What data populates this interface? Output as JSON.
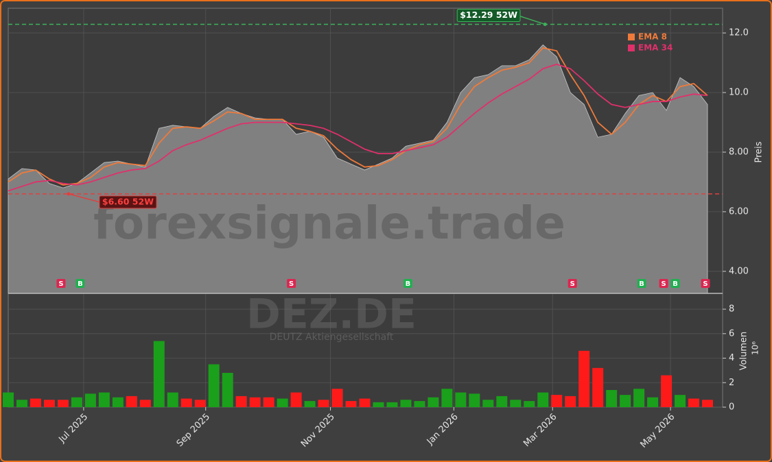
{
  "chart_data": {
    "type": "stock",
    "ticker": "DEZ.DE",
    "company": "DEUTZ Aktiengesellschaft",
    "watermark": "forexsignale.trade",
    "ylabel": "Preis",
    "y2label": "Volumen",
    "y2unit": "10⁶",
    "xlim": [
      0,
      52
    ],
    "xticks": [
      {
        "value": 5.5,
        "label": "Jul 2025"
      },
      {
        "value": 14.4,
        "label": "Sep 2025"
      },
      {
        "value": 23.5,
        "label": "Nov 2025"
      },
      {
        "value": 32.5,
        "label": "Jan 2026"
      },
      {
        "value": 39.7,
        "label": "Mar 2026"
      },
      {
        "value": 48.3,
        "label": "May 2026"
      }
    ],
    "ylim": [
      3.26,
      12.83
    ],
    "yticks": [
      {
        "value": 4,
        "label": "4.00"
      },
      {
        "value": 6,
        "label": "6.00"
      },
      {
        "value": 8,
        "label": "8.00"
      },
      {
        "value": 10,
        "label": "10.0"
      },
      {
        "value": 12,
        "label": "12.0"
      }
    ],
    "y2lim": [
      0,
      9.29
    ],
    "y2ticks": [
      0,
      2,
      4,
      6,
      8
    ],
    "grid": true,
    "x": [
      0,
      1,
      2,
      3,
      4,
      5,
      6,
      7,
      8,
      9,
      10,
      11,
      12,
      13,
      14,
      15,
      16,
      17,
      18,
      19,
      20,
      21,
      22,
      23,
      24,
      25,
      26,
      27,
      28,
      29,
      30,
      31,
      32,
      33,
      34,
      35,
      36,
      37,
      38,
      39,
      40,
      41,
      42,
      43,
      44,
      45,
      46,
      47,
      48,
      49,
      50,
      51
    ],
    "series": [
      {
        "name": "Close",
        "color": "#808080",
        "values": [
          7.1,
          7.45,
          7.4,
          6.95,
          6.8,
          6.95,
          7.3,
          7.65,
          7.7,
          7.6,
          7.5,
          8.8,
          8.9,
          8.85,
          8.8,
          9.2,
          9.5,
          9.3,
          9.15,
          9.1,
          9.1,
          8.6,
          8.7,
          8.5,
          7.8,
          7.6,
          7.4,
          7.6,
          7.8,
          8.2,
          8.3,
          8.4,
          9.0,
          10.0,
          10.5,
          10.6,
          10.9,
          10.9,
          11.1,
          11.6,
          11.2,
          10.0,
          9.6,
          8.5,
          8.6,
          9.3,
          9.9,
          10.0,
          9.4,
          10.5,
          10.2,
          9.6
        ]
      },
      {
        "name": "EMA 8",
        "color": "#f07a3a",
        "values": [
          7.0,
          7.3,
          7.4,
          7.1,
          6.9,
          6.95,
          7.15,
          7.5,
          7.65,
          7.6,
          7.55,
          8.3,
          8.8,
          8.85,
          8.8,
          9.05,
          9.35,
          9.3,
          9.1,
          9.1,
          9.1,
          8.8,
          8.7,
          8.55,
          8.1,
          7.75,
          7.5,
          7.55,
          7.75,
          8.05,
          8.25,
          8.35,
          8.8,
          9.6,
          10.2,
          10.5,
          10.75,
          10.85,
          11.0,
          11.5,
          11.4,
          10.6,
          9.9,
          9.0,
          8.6,
          9.0,
          9.6,
          9.9,
          9.7,
          10.2,
          10.3,
          9.9
        ]
      },
      {
        "name": "EMA 34",
        "color": "#e0306a",
        "values": [
          6.7,
          6.85,
          7.0,
          7.05,
          6.95,
          6.9,
          7.0,
          7.15,
          7.3,
          7.4,
          7.45,
          7.7,
          8.05,
          8.25,
          8.4,
          8.6,
          8.8,
          8.95,
          9.0,
          9.0,
          9.0,
          8.95,
          8.9,
          8.8,
          8.6,
          8.35,
          8.1,
          7.95,
          7.95,
          8.05,
          8.15,
          8.25,
          8.5,
          8.9,
          9.3,
          9.65,
          9.95,
          10.2,
          10.45,
          10.8,
          10.95,
          10.8,
          10.4,
          9.95,
          9.6,
          9.5,
          9.6,
          9.7,
          9.7,
          9.85,
          9.95,
          9.9
        ]
      },
      {
        "name": "Volumen",
        "axis": "y2",
        "up_color": "#1aa01a",
        "down_color": "#ff1a1a",
        "values": [
          1.2,
          0.6,
          0.7,
          0.6,
          0.6,
          0.8,
          1.1,
          1.2,
          0.8,
          0.9,
          0.6,
          5.4,
          1.2,
          0.7,
          0.6,
          3.5,
          2.8,
          0.9,
          0.8,
          0.8,
          0.7,
          1.2,
          0.5,
          0.6,
          1.5,
          0.5,
          0.7,
          0.4,
          0.4,
          0.6,
          0.5,
          0.8,
          1.5,
          1.2,
          1.1,
          0.6,
          0.9,
          0.6,
          0.5,
          1.2,
          1.0,
          0.9,
          4.6,
          3.2,
          1.4,
          1.0,
          1.5,
          0.8,
          2.6,
          1.0,
          0.7,
          0.6
        ]
      }
    ],
    "levels": [
      {
        "label": "$12.29 52W",
        "value": 12.29,
        "x": 39.15,
        "color": "#3cb35a"
      },
      {
        "label": "$6.60 52W",
        "value": 6.6,
        "x": 4.4,
        "color": "#e04040"
      }
    ],
    "signal_colors": {
      "S": "#dc2650",
      "B": "#20b050"
    },
    "signals": [
      {
        "x": 3.85,
        "label": "S"
      },
      {
        "x": 5.25,
        "label": "B"
      },
      {
        "x": 20.65,
        "label": "S"
      },
      {
        "x": 29.15,
        "label": "B"
      },
      {
        "x": 41.15,
        "label": "S"
      },
      {
        "x": 46.2,
        "label": "B"
      },
      {
        "x": 47.8,
        "label": "S"
      },
      {
        "x": 48.65,
        "label": "B"
      },
      {
        "x": 50.85,
        "label": "S"
      }
    ]
  }
}
